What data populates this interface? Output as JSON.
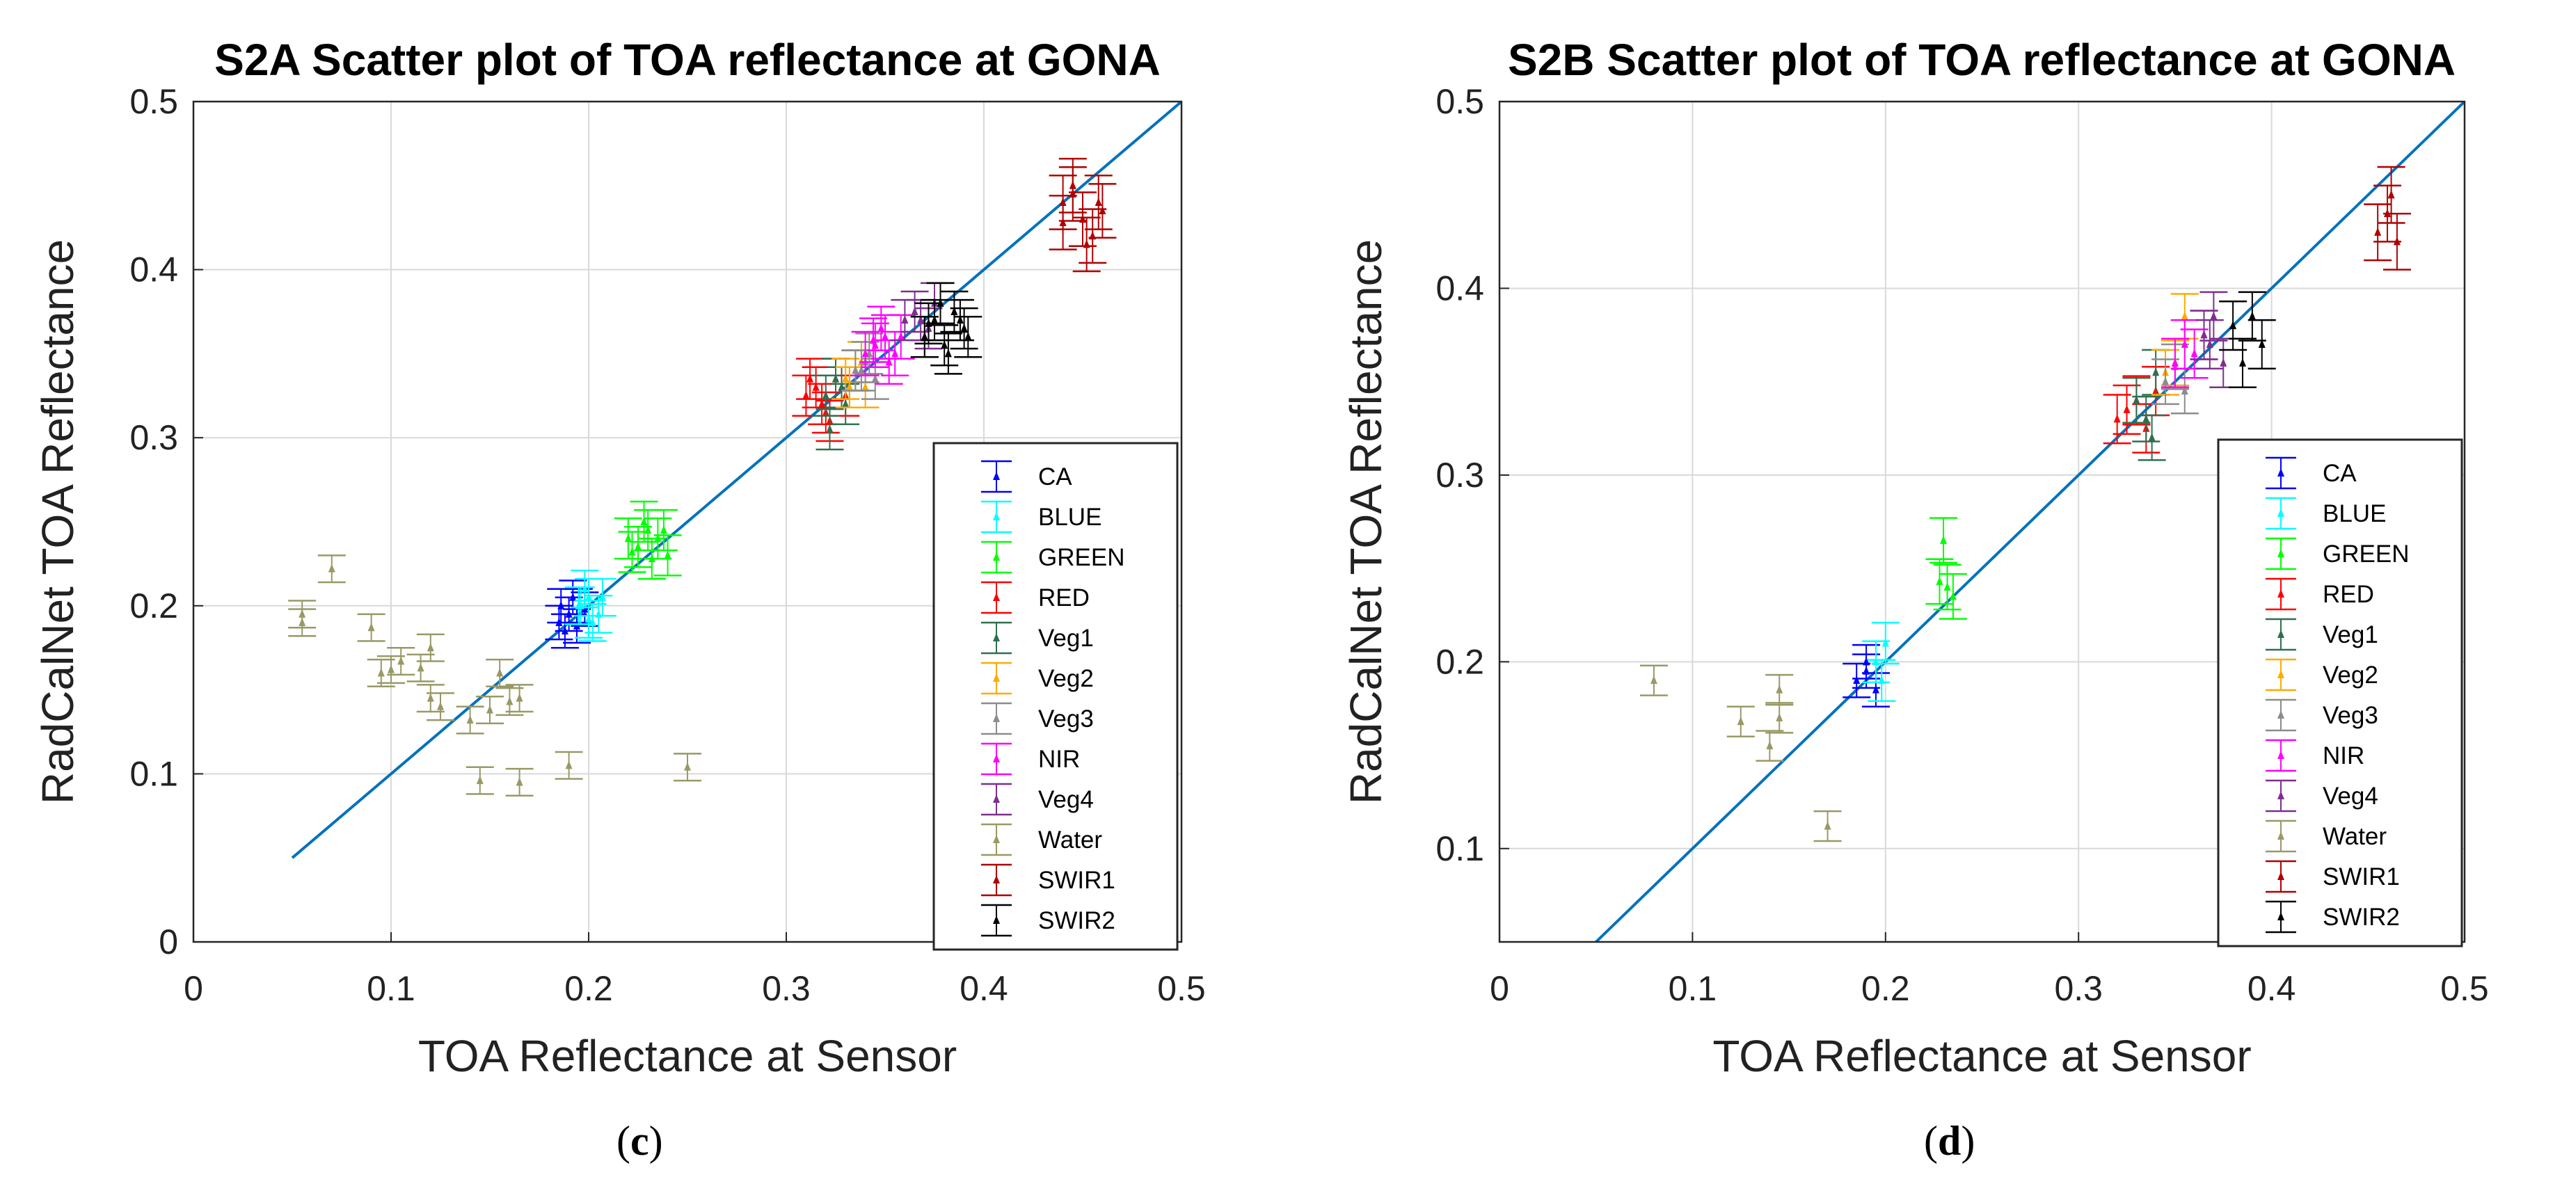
{
  "colors": {
    "CA": "#0000ff",
    "BLUE": "#00ffff",
    "GREEN": "#00ff00",
    "RED": "#ff0000",
    "Veg1": "#2f6f4f",
    "Veg2": "#ffaa00",
    "Veg3": "#8c8c8c",
    "NIR": "#ff00ff",
    "Veg4": "#7e2f8e",
    "Water": "#999966",
    "SWIR1": "#b00000",
    "SWIR2": "#000000",
    "fit_line": "#0072bd",
    "grid": "#d9d9d9"
  },
  "chart_data": [
    {
      "type": "scatter",
      "panel": "c",
      "panel_prefix": "(",
      "panel_letter": "c",
      "panel_suffix": ")",
      "title": "S2A Scatter plot of TOA reflectance at GONA",
      "xlabel": "TOA Reflectance at Sensor",
      "ylabel": "RadCalNet TOA Reflectance",
      "xlim": [
        0,
        0.5
      ],
      "ylim": [
        0,
        0.5
      ],
      "xticks": [
        "0",
        "0.1",
        "0.2",
        "0.3",
        "0.4",
        "0.5"
      ],
      "yticks": [
        "0",
        "0.1",
        "0.2",
        "0.3",
        "0.4",
        "0.5"
      ],
      "grid": true,
      "legend_position": "bottom-right",
      "one_to_one_line": [
        [
          0.05,
          0.05
        ],
        [
          0.5,
          0.5
        ]
      ],
      "series": [
        {
          "name": "CA",
          "err": 0.01,
          "points": [
            [
              0.185,
              0.19
            ],
            [
              0.19,
              0.195
            ],
            [
              0.195,
              0.2
            ],
            [
              0.188,
              0.185
            ],
            [
              0.192,
              0.205
            ],
            [
              0.198,
              0.198
            ],
            [
              0.186,
              0.2
            ],
            [
              0.194,
              0.188
            ]
          ]
        },
        {
          "name": "BLUE",
          "err": 0.011,
          "points": [
            [
              0.195,
              0.2
            ],
            [
              0.2,
              0.205
            ],
            [
              0.205,
              0.195
            ],
            [
              0.198,
              0.21
            ],
            [
              0.202,
              0.19
            ],
            [
              0.196,
              0.2
            ],
            [
              0.207,
              0.205
            ],
            [
              0.2,
              0.192
            ]
          ]
        },
        {
          "name": "GREEN",
          "err": 0.012,
          "points": [
            [
              0.22,
              0.24
            ],
            [
              0.225,
              0.235
            ],
            [
              0.23,
              0.245
            ],
            [
              0.235,
              0.24
            ],
            [
              0.24,
              0.23
            ],
            [
              0.228,
              0.25
            ],
            [
              0.232,
              0.228
            ],
            [
              0.238,
              0.245
            ],
            [
              0.222,
              0.232
            ]
          ]
        },
        {
          "name": "RED",
          "err": 0.012,
          "points": [
            [
              0.31,
              0.325
            ],
            [
              0.315,
              0.33
            ],
            [
              0.32,
              0.315
            ],
            [
              0.325,
              0.335
            ],
            [
              0.318,
              0.32
            ],
            [
              0.33,
              0.325
            ],
            [
              0.312,
              0.335
            ],
            [
              0.322,
              0.31
            ],
            [
              0.328,
              0.33
            ]
          ]
        },
        {
          "name": "Veg1",
          "err": 0.012,
          "points": [
            [
              0.32,
              0.325
            ],
            [
              0.325,
              0.335
            ],
            [
              0.33,
              0.32
            ],
            [
              0.335,
              0.34
            ],
            [
              0.328,
              0.33
            ],
            [
              0.322,
              0.305
            ],
            [
              0.332,
              0.33
            ]
          ]
        },
        {
          "name": "Veg2",
          "err": 0.012,
          "points": [
            [
              0.33,
              0.335
            ],
            [
              0.335,
              0.34
            ],
            [
              0.34,
              0.33
            ],
            [
              0.338,
              0.345
            ],
            [
              0.332,
              0.33
            ]
          ]
        },
        {
          "name": "Veg3",
          "err": 0.012,
          "points": [
            [
              0.335,
              0.34
            ],
            [
              0.34,
              0.345
            ],
            [
              0.345,
              0.335
            ],
            [
              0.342,
              0.35
            ],
            [
              0.338,
              0.34
            ]
          ]
        },
        {
          "name": "NIR",
          "err": 0.013,
          "points": [
            [
              0.34,
              0.35
            ],
            [
              0.345,
              0.355
            ],
            [
              0.35,
              0.36
            ],
            [
              0.355,
              0.35
            ],
            [
              0.348,
              0.365
            ],
            [
              0.352,
              0.345
            ],
            [
              0.358,
              0.36
            ],
            [
              0.344,
              0.358
            ]
          ]
        },
        {
          "name": "Veg4",
          "err": 0.012,
          "points": [
            [
              0.36,
              0.37
            ],
            [
              0.365,
              0.375
            ],
            [
              0.37,
              0.36
            ],
            [
              0.375,
              0.38
            ],
            [
              0.368,
              0.37
            ],
            [
              0.372,
              0.365
            ]
          ]
        },
        {
          "name": "Water",
          "err": 0.008,
          "points": [
            [
              0.055,
              0.19
            ],
            [
              0.055,
              0.195
            ],
            [
              0.07,
              0.222
            ],
            [
              0.09,
              0.187
            ],
            [
              0.095,
              0.16
            ],
            [
              0.1,
              0.162
            ],
            [
              0.105,
              0.167
            ],
            [
              0.12,
              0.175
            ],
            [
              0.12,
              0.145
            ],
            [
              0.125,
              0.14
            ],
            [
              0.115,
              0.163
            ],
            [
              0.14,
              0.132
            ],
            [
              0.15,
              0.138
            ],
            [
              0.155,
              0.16
            ],
            [
              0.16,
              0.143
            ],
            [
              0.165,
              0.145
            ],
            [
              0.145,
              0.096
            ],
            [
              0.165,
              0.095
            ],
            [
              0.19,
              0.105
            ],
            [
              0.25,
              0.104
            ]
          ]
        },
        {
          "name": "SWIR1",
          "err": 0.016,
          "points": [
            [
              0.44,
              0.44
            ],
            [
              0.445,
              0.445
            ],
            [
              0.45,
              0.43
            ],
            [
              0.455,
              0.42
            ],
            [
              0.46,
              0.435
            ],
            [
              0.445,
              0.45
            ],
            [
              0.452,
              0.415
            ],
            [
              0.458,
              0.44
            ],
            [
              0.44,
              0.428
            ]
          ]
        },
        {
          "name": "SWIR2",
          "err": 0.012,
          "points": [
            [
              0.37,
              0.36
            ],
            [
              0.375,
              0.37
            ],
            [
              0.38,
              0.355
            ],
            [
              0.385,
              0.375
            ],
            [
              0.39,
              0.365
            ],
            [
              0.378,
              0.38
            ],
            [
              0.382,
              0.35
            ],
            [
              0.388,
              0.37
            ],
            [
              0.372,
              0.368
            ],
            [
              0.392,
              0.36
            ]
          ]
        }
      ]
    },
    {
      "type": "scatter",
      "panel": "d",
      "panel_prefix": "(",
      "panel_letter": "d",
      "panel_suffix": ")",
      "title": "S2B Scatter plot of TOA reflectance at GONA",
      "xlabel": "TOA Reflectance at Sensor",
      "ylabel": "RadCalNet TOA Reflectance",
      "xlim": [
        0,
        0.5
      ],
      "ylim": [
        0.05,
        0.5
      ],
      "xticks": [
        "0",
        "0.1",
        "0.2",
        "0.3",
        "0.4",
        "0.5"
      ],
      "yticks": [
        "0.1",
        "0.2",
        "0.3",
        "0.4",
        "0.5"
      ],
      "grid": true,
      "legend_position": "bottom-right",
      "one_to_one_line": [
        [
          0.05,
          0.05
        ],
        [
          0.5,
          0.5
        ]
      ],
      "series": [
        {
          "name": "CA",
          "err": 0.009,
          "points": [
            [
              0.185,
              0.19
            ],
            [
              0.19,
              0.195
            ],
            [
              0.195,
              0.185
            ],
            [
              0.19,
              0.2
            ]
          ]
        },
        {
          "name": "BLUE",
          "err": 0.011,
          "points": [
            [
              0.195,
              0.2
            ],
            [
              0.2,
              0.21
            ],
            [
              0.198,
              0.19
            ]
          ]
        },
        {
          "name": "GREEN",
          "err": 0.012,
          "points": [
            [
              0.23,
              0.265
            ],
            [
              0.232,
              0.24
            ],
            [
              0.235,
              0.235
            ],
            [
              0.228,
              0.243
            ]
          ]
        },
        {
          "name": "RED",
          "err": 0.013,
          "points": [
            [
              0.325,
              0.335
            ],
            [
              0.33,
              0.34
            ],
            [
              0.335,
              0.325
            ],
            [
              0.34,
              0.345
            ],
            [
              0.32,
              0.33
            ]
          ]
        },
        {
          "name": "Veg1",
          "err": 0.012,
          "points": [
            [
              0.33,
              0.34
            ],
            [
              0.335,
              0.33
            ],
            [
              0.34,
              0.355
            ],
            [
              0.338,
              0.32
            ]
          ]
        },
        {
          "name": "Veg2",
          "err": 0.012,
          "points": [
            [
              0.345,
              0.355
            ],
            [
              0.35,
              0.36
            ],
            [
              0.355,
              0.385
            ]
          ]
        },
        {
          "name": "Veg3",
          "err": 0.012,
          "points": [
            [
              0.345,
              0.35
            ],
            [
              0.35,
              0.358
            ],
            [
              0.355,
              0.345
            ]
          ]
        },
        {
          "name": "NIR",
          "err": 0.013,
          "points": [
            [
              0.35,
              0.36
            ],
            [
              0.355,
              0.37
            ],
            [
              0.36,
              0.365
            ],
            [
              0.365,
              0.375
            ]
          ]
        },
        {
          "name": "Veg4",
          "err": 0.013,
          "points": [
            [
              0.365,
              0.375
            ],
            [
              0.37,
              0.385
            ],
            [
              0.375,
              0.36
            ],
            [
              0.368,
              0.37
            ]
          ]
        },
        {
          "name": "Water",
          "err": 0.008,
          "points": [
            [
              0.08,
              0.19
            ],
            [
              0.125,
              0.168
            ],
            [
              0.14,
              0.155
            ],
            [
              0.145,
              0.185
            ],
            [
              0.145,
              0.17
            ],
            [
              0.17,
              0.112
            ]
          ]
        },
        {
          "name": "SWIR1",
          "err": 0.015,
          "points": [
            [
              0.455,
              0.43
            ],
            [
              0.46,
              0.44
            ],
            [
              0.465,
              0.425
            ],
            [
              0.462,
              0.45
            ]
          ]
        },
        {
          "name": "SWIR2",
          "err": 0.013,
          "points": [
            [
              0.38,
              0.38
            ],
            [
              0.385,
              0.36
            ],
            [
              0.39,
              0.385
            ],
            [
              0.395,
              0.37
            ]
          ]
        }
      ]
    }
  ]
}
